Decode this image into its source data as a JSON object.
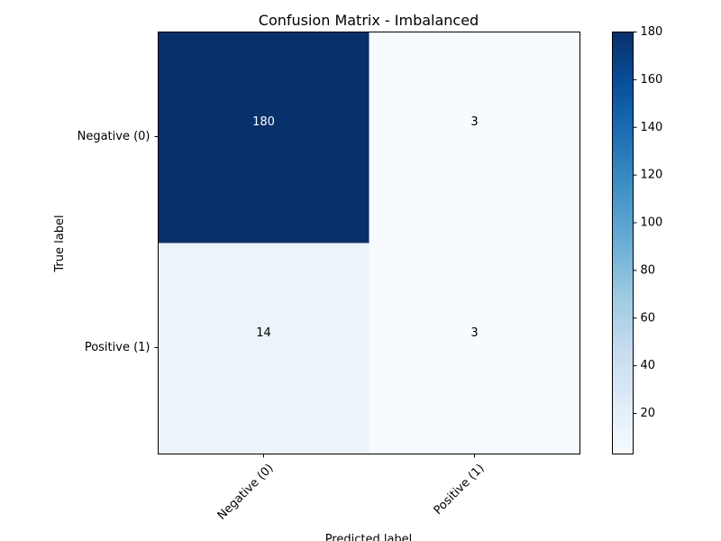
{
  "chart_data": {
    "type": "heatmap",
    "title": "Confusion Matrix - Imbalanced",
    "xlabel": "Predicted label",
    "ylabel": "True label",
    "x_categories": [
      "Negative (0)",
      "Positive (1)"
    ],
    "y_categories": [
      "Negative (0)",
      "Positive (1)"
    ],
    "values": [
      [
        180,
        3
      ],
      [
        14,
        3
      ]
    ],
    "colormap": "Blues",
    "color_range": [
      3,
      180
    ],
    "colorbar_ticks": [
      20,
      40,
      60,
      80,
      100,
      120,
      140,
      160,
      180
    ],
    "grid": false,
    "colorbar_position": "right"
  }
}
